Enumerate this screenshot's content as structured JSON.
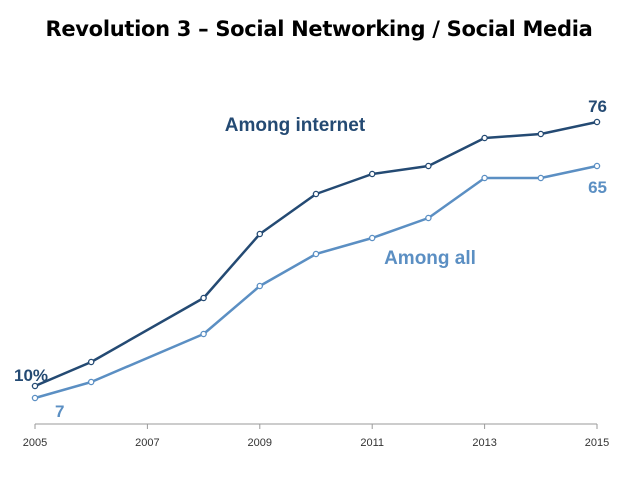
{
  "slide": {
    "title": "Revolution 3 – Social Networking / Social Media"
  },
  "chart_data": {
    "type": "line",
    "title": "Revolution 3 – Social Networking / Social Media",
    "xlabel": "",
    "ylabel": "",
    "x": [
      2005,
      2006,
      2008,
      2009,
      2010,
      2011,
      2012,
      2013,
      2014,
      2015
    ],
    "xlim": [
      2005,
      2015
    ],
    "ylim": [
      0,
      100
    ],
    "xticks": [
      "2005",
      "2007",
      "2009",
      "2011",
      "2013",
      "2015"
    ],
    "grid": false,
    "series": [
      {
        "name": "Among internet",
        "color": "#244a73",
        "values": [
          10,
          16,
          32,
          48,
          58,
          63,
          65,
          72,
          73,
          76
        ],
        "start_label": "10%",
        "end_label": "76"
      },
      {
        "name": "Among all",
        "color": "#5b8fc3",
        "values": [
          7,
          11,
          23,
          35,
          43,
          47,
          52,
          62,
          62,
          65
        ],
        "start_label": "7",
        "end_label": "65"
      }
    ]
  }
}
